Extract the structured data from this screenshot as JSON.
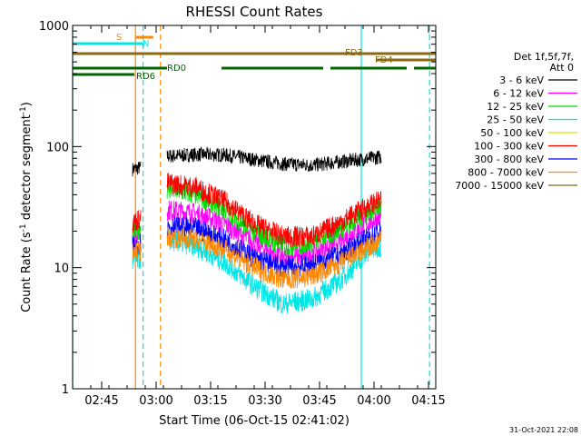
{
  "chart_data": {
    "type": "line",
    "title": "RHESSI Count Rates",
    "xlabel": "Start Time (06-Oct-15 02:41:02)",
    "ylabel_main": "Count Rate (s",
    "ylabel_sup1": "-1",
    "ylabel_mid": " detector segment",
    "ylabel_sup2": "-1",
    "ylabel_end": ")",
    "y_scale": "log",
    "ylim": [
      1,
      1000
    ],
    "xlim_minutes": [
      -4,
      96
    ],
    "x_ticks": [
      {
        "minute": 4,
        "label": "02:45"
      },
      {
        "minute": 19,
        "label": "03:00"
      },
      {
        "minute": 34,
        "label": "03:15"
      },
      {
        "minute": 49,
        "label": "03:30"
      },
      {
        "minute": 64,
        "label": "03:45"
      },
      {
        "minute": 79,
        "label": "04:00"
      },
      {
        "minute": 94,
        "label": "04:15"
      }
    ],
    "y_ticks": [
      {
        "value": 1,
        "label": "1"
      },
      {
        "value": 10,
        "label": "10"
      },
      {
        "value": 100,
        "label": "100"
      },
      {
        "value": 1000,
        "label": "1000"
      }
    ],
    "legend": {
      "placement": "right",
      "header_line1": "Det 1f,5f,7f,",
      "header_line2": "Att 0"
    },
    "series": [
      {
        "name": "3 - 6 keV",
        "color": "#000000",
        "values": [
          [
            12.5,
            65
          ],
          [
            14.8,
            67
          ],
          [
            22,
            83
          ],
          [
            30,
            86
          ],
          [
            38,
            85
          ],
          [
            46,
            78
          ],
          [
            54,
            72
          ],
          [
            62,
            70
          ],
          [
            70,
            75
          ],
          [
            78,
            80
          ],
          [
            81,
            82
          ]
        ]
      },
      {
        "name": "6 - 12 keV",
        "color": "#ff00ff",
        "values": [
          [
            12.5,
            18
          ],
          [
            14.8,
            20
          ],
          [
            22,
            30
          ],
          [
            30,
            28
          ],
          [
            38,
            23
          ],
          [
            46,
            16
          ],
          [
            54,
            12
          ],
          [
            62,
            13
          ],
          [
            70,
            17
          ],
          [
            78,
            24
          ],
          [
            81,
            26
          ]
        ]
      },
      {
        "name": "12 - 25 keV",
        "color": "#00dd00",
        "values": [
          [
            12.5,
            19
          ],
          [
            14.8,
            22
          ],
          [
            22,
            45
          ],
          [
            30,
            40
          ],
          [
            38,
            30
          ],
          [
            46,
            20
          ],
          [
            54,
            15
          ],
          [
            62,
            16
          ],
          [
            70,
            21
          ],
          [
            78,
            30
          ],
          [
            81,
            32
          ]
        ]
      },
      {
        "name": "25 - 50 keV",
        "color": "#00e5e5",
        "values": [
          [
            12.5,
            11
          ],
          [
            14.8,
            12
          ],
          [
            22,
            17
          ],
          [
            30,
            15
          ],
          [
            38,
            11
          ],
          [
            46,
            7
          ],
          [
            54,
            5
          ],
          [
            62,
            5.5
          ],
          [
            70,
            8
          ],
          [
            78,
            14
          ],
          [
            81,
            15
          ]
        ]
      },
      {
        "name": "50 - 100 keV",
        "color": "#dddd00",
        "values": []
      },
      {
        "name": "100 - 300 keV",
        "color": "#ff0000",
        "values": [
          [
            12.5,
            23
          ],
          [
            14.8,
            26
          ],
          [
            22,
            50
          ],
          [
            30,
            46
          ],
          [
            38,
            35
          ],
          [
            46,
            23
          ],
          [
            54,
            18
          ],
          [
            62,
            18
          ],
          [
            70,
            24
          ],
          [
            78,
            33
          ],
          [
            81,
            36
          ]
        ]
      },
      {
        "name": "300 - 800 keV",
        "color": "#0000ff",
        "values": [
          [
            12.5,
            15
          ],
          [
            14.8,
            16
          ],
          [
            22,
            22
          ],
          [
            30,
            21
          ],
          [
            38,
            17
          ],
          [
            46,
            12
          ],
          [
            54,
            10
          ],
          [
            62,
            10.5
          ],
          [
            70,
            13
          ],
          [
            78,
            18
          ],
          [
            81,
            20
          ]
        ]
      },
      {
        "name": "800 - 7000 keV",
        "color": "#ff8800",
        "values": [
          [
            12.5,
            13
          ],
          [
            14.8,
            14
          ],
          [
            22,
            18
          ],
          [
            30,
            17
          ],
          [
            38,
            14
          ],
          [
            46,
            10
          ],
          [
            54,
            8
          ],
          [
            62,
            8.5
          ],
          [
            70,
            11
          ],
          [
            78,
            15
          ],
          [
            81,
            17
          ]
        ]
      },
      {
        "name": "7000 - 15000 keV",
        "color": "#8b6914",
        "values": []
      }
    ],
    "flag_bars": [
      {
        "label": "S",
        "color": "#ff8800",
        "segments": [
          [
            13.3,
            18.2
          ]
        ]
      },
      {
        "label": "N",
        "color": "#00e5e5",
        "segments": [
          [
            -4,
            15.4
          ]
        ]
      },
      {
        "label": "FD3",
        "color": "#8b6914",
        "segments": [
          [
            -4,
            96
          ]
        ]
      },
      {
        "label": "FD4",
        "color": "#8b6914",
        "segments": [
          [
            79.5,
            96
          ]
        ]
      },
      {
        "label": "RD0",
        "color": "#006600",
        "segments": [
          [
            -4,
            22
          ],
          [
            37,
            65
          ],
          [
            67,
            88
          ],
          [
            90,
            96
          ]
        ]
      },
      {
        "label": "RD6",
        "color": "#006600",
        "segments": [
          [
            -4,
            13
          ]
        ]
      }
    ],
    "vertical_markers": [
      {
        "minute": -4,
        "color": "#00e5e5",
        "style": "solid"
      },
      {
        "minute": 13.3,
        "color": "#ff8800",
        "style": "solid"
      },
      {
        "minute": 15.4,
        "color": "#00e5e5",
        "style": "dashed"
      },
      {
        "minute": 20.2,
        "color": "#ff8800",
        "style": "dashed"
      },
      {
        "minute": 75.5,
        "color": "#00e5e5",
        "style": "solid"
      },
      {
        "minute": 94.3,
        "color": "#00e5e5",
        "style": "dashed"
      }
    ],
    "timestamp": "31-Oct-2021 22:08"
  }
}
